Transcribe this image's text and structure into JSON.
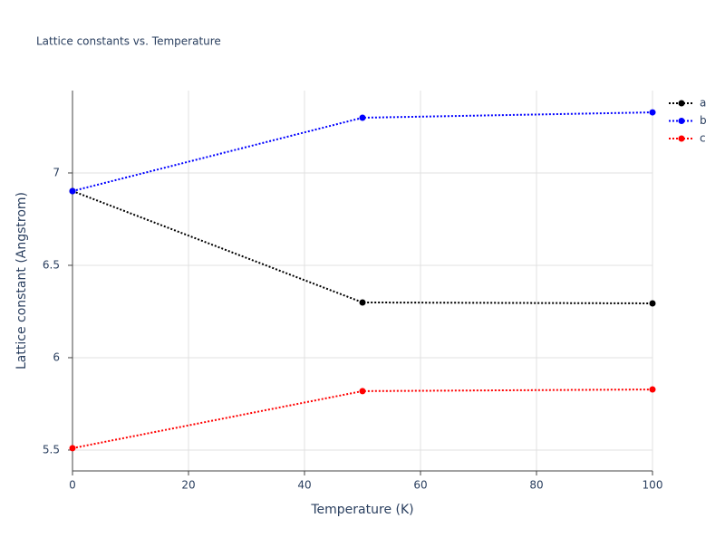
{
  "chart_data": {
    "type": "line",
    "title": "Lattice constants vs. Temperature",
    "x_label": "Temperature (K)",
    "y_label": "Lattice constant (Angstrom)",
    "x": [
      0,
      50,
      100
    ],
    "series": [
      {
        "name": "a",
        "color": "#000000",
        "values": [
          6.902,
          6.299,
          6.294
        ]
      },
      {
        "name": "b",
        "color": "#0000ff",
        "values": [
          6.902,
          7.299,
          7.328
        ]
      },
      {
        "name": "c",
        "color": "#ff0000",
        "values": [
          5.51,
          5.819,
          5.828
        ]
      }
    ],
    "xlim": [
      0,
      100
    ],
    "xticks": [
      0,
      20,
      40,
      60,
      80,
      100
    ],
    "ylim": [
      5.387,
      7.446
    ],
    "yticks": [
      5.5,
      6,
      6.5,
      7
    ],
    "grid": true,
    "legend": "top-right",
    "line_style": "dotted"
  }
}
